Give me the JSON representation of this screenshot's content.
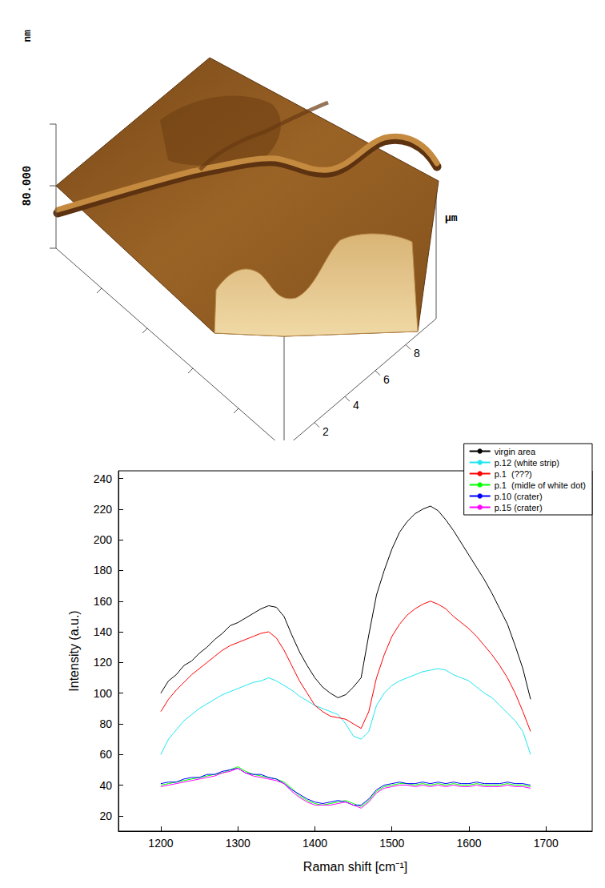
{
  "chart_data": {
    "type": "line",
    "x_label": "Raman shift [cm⁻¹]",
    "y_label": "Intensity (a.u.)",
    "xlim": [
      1145,
      1760
    ],
    "xticks": [
      1200,
      1300,
      1400,
      1500,
      1600,
      1700
    ],
    "ylim": [
      10,
      245
    ],
    "yticks": [
      20,
      40,
      60,
      80,
      100,
      120,
      140,
      160,
      180,
      200,
      220,
      240
    ],
    "grid": false,
    "legend": "upper right",
    "x": [
      1200,
      1210,
      1220,
      1230,
      1240,
      1250,
      1260,
      1270,
      1280,
      1290,
      1300,
      1310,
      1320,
      1330,
      1340,
      1350,
      1360,
      1370,
      1380,
      1390,
      1400,
      1410,
      1420,
      1430,
      1440,
      1450,
      1460,
      1470,
      1480,
      1490,
      1500,
      1510,
      1520,
      1530,
      1540,
      1550,
      1560,
      1570,
      1580,
      1590,
      1600,
      1610,
      1620,
      1630,
      1640,
      1650,
      1660,
      1670,
      1680
    ],
    "series": [
      {
        "name": "virgin area",
        "color": "#000000",
        "values": [
          100,
          108,
          112,
          118,
          121,
          126,
          130,
          135,
          139,
          144,
          146,
          149,
          152,
          155,
          157,
          156,
          150,
          138,
          127,
          118,
          110,
          104,
          100,
          97,
          99,
          104,
          110,
          138,
          164,
          180,
          194,
          205,
          212,
          217,
          220,
          222,
          219,
          213,
          206,
          198,
          190,
          182,
          174,
          165,
          155,
          145,
          131,
          116,
          96
        ]
      },
      {
        "name": "p.12 (white strip)",
        "color": "#1ee6f0",
        "values": [
          60,
          70,
          76,
          82,
          86,
          90,
          93,
          96,
          99,
          101,
          103,
          105,
          107,
          108,
          110,
          108,
          105,
          102,
          98,
          95,
          92,
          90,
          88,
          86,
          80,
          72,
          70,
          75,
          92,
          100,
          105,
          108,
          110,
          112,
          114,
          115,
          116,
          115,
          112,
          110,
          108,
          104,
          100,
          97,
          92,
          87,
          82,
          75,
          60
        ]
      },
      {
        "name": "p.1  (???)",
        "color": "#ff0000",
        "values": [
          88,
          96,
          102,
          107,
          112,
          116,
          120,
          124,
          128,
          131,
          133,
          135,
          137,
          139,
          140,
          136,
          128,
          118,
          108,
          100,
          92,
          88,
          85,
          84,
          83,
          80,
          77,
          88,
          110,
          125,
          137,
          145,
          151,
          155,
          158,
          160,
          158,
          155,
          150,
          146,
          142,
          137,
          131,
          125,
          118,
          110,
          100,
          88,
          75
        ]
      },
      {
        "name": "p.1  (midle of white dot)",
        "color": "#00ff00",
        "values": [
          40,
          41,
          42,
          43,
          44,
          45,
          46,
          47,
          48,
          50,
          52,
          49,
          47,
          46,
          45,
          44,
          42,
          38,
          33,
          30,
          28,
          27,
          28,
          29,
          30,
          28,
          26,
          30,
          36,
          39,
          40,
          41,
          41,
          40,
          41,
          40,
          41,
          40,
          41,
          40,
          40,
          41,
          40,
          40,
          40,
          41,
          40,
          40,
          39
        ]
      },
      {
        "name": "p.10 (crater)",
        "color": "#0000ff",
        "values": [
          41,
          42,
          42,
          44,
          45,
          45,
          47,
          47,
          49,
          50,
          51,
          48,
          47,
          47,
          45,
          44,
          41,
          37,
          34,
          31,
          29,
          28,
          29,
          30,
          29,
          27,
          27,
          31,
          37,
          40,
          41,
          42,
          41,
          41,
          42,
          41,
          42,
          41,
          42,
          41,
          41,
          42,
          41,
          41,
          41,
          42,
          41,
          41,
          40
        ]
      },
      {
        "name": "p.15 (crater)",
        "color": "#ff00ff",
        "values": [
          39,
          40,
          41,
          42,
          43,
          44,
          45,
          46,
          48,
          49,
          51,
          48,
          46,
          45,
          44,
          43,
          41,
          36,
          32,
          29,
          27,
          27,
          27,
          28,
          29,
          27,
          25,
          29,
          35,
          38,
          39,
          40,
          40,
          39,
          40,
          39,
          40,
          39,
          40,
          39,
          39,
          40,
          39,
          39,
          39,
          40,
          39,
          39,
          38
        ]
      }
    ]
  },
  "afm_image": {
    "z_ticks": [
      {
        "value": 80,
        "label": "80.000"
      }
    ],
    "z_unit": "nm",
    "xy_unit": "µm",
    "xy_ticks": [
      2,
      4,
      6,
      8
    ]
  }
}
